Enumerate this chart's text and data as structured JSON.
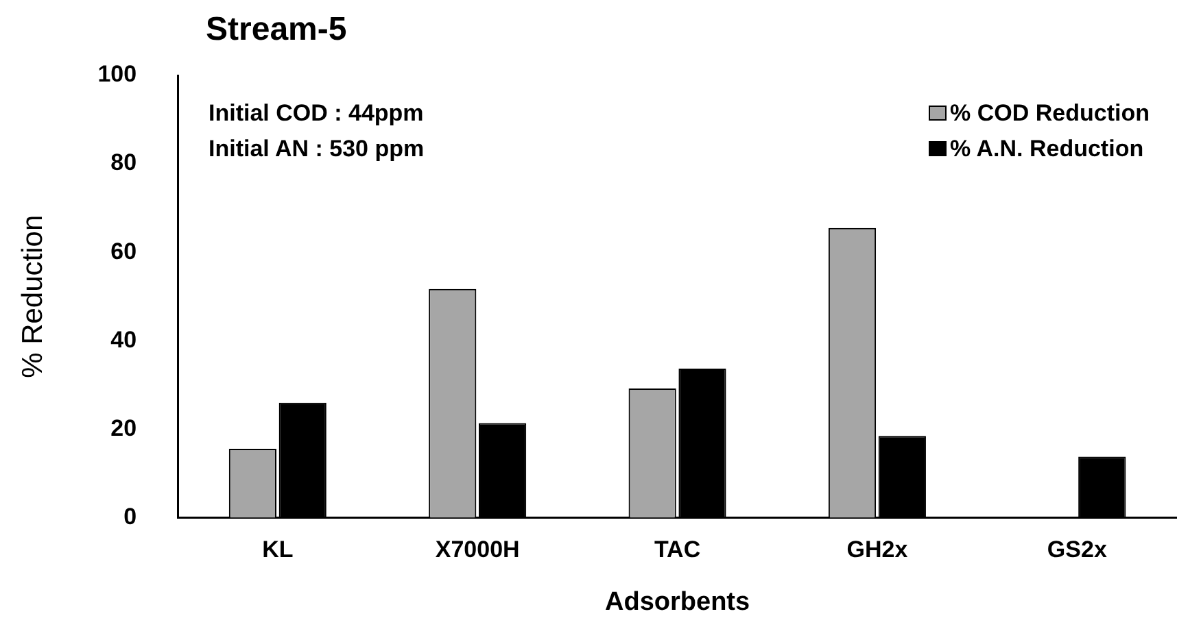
{
  "chart_data": {
    "type": "bar",
    "title": "Stream-5",
    "xlabel": "Adsorbents",
    "ylabel": "% Reduction",
    "categories": [
      "KL",
      "X7000H",
      "TAC",
      "GH2x",
      "GS2x"
    ],
    "series": [
      {
        "name": "% COD Reduction",
        "color": "#a6a6a6",
        "values": [
          15.6,
          51.7,
          29.2,
          65.5,
          null
        ]
      },
      {
        "name": "% A.N. Reduction",
        "color": "#000000",
        "values": [
          26.0,
          21.4,
          33.7,
          18.5,
          13.8
        ]
      }
    ],
    "ylim": [
      0,
      100
    ],
    "yticks": [
      0,
      20,
      40,
      60,
      80,
      100
    ],
    "grid": false,
    "legend": "top right",
    "annotations": [
      "Initial COD : 44ppm",
      "Initial AN : 530 ppm"
    ]
  }
}
